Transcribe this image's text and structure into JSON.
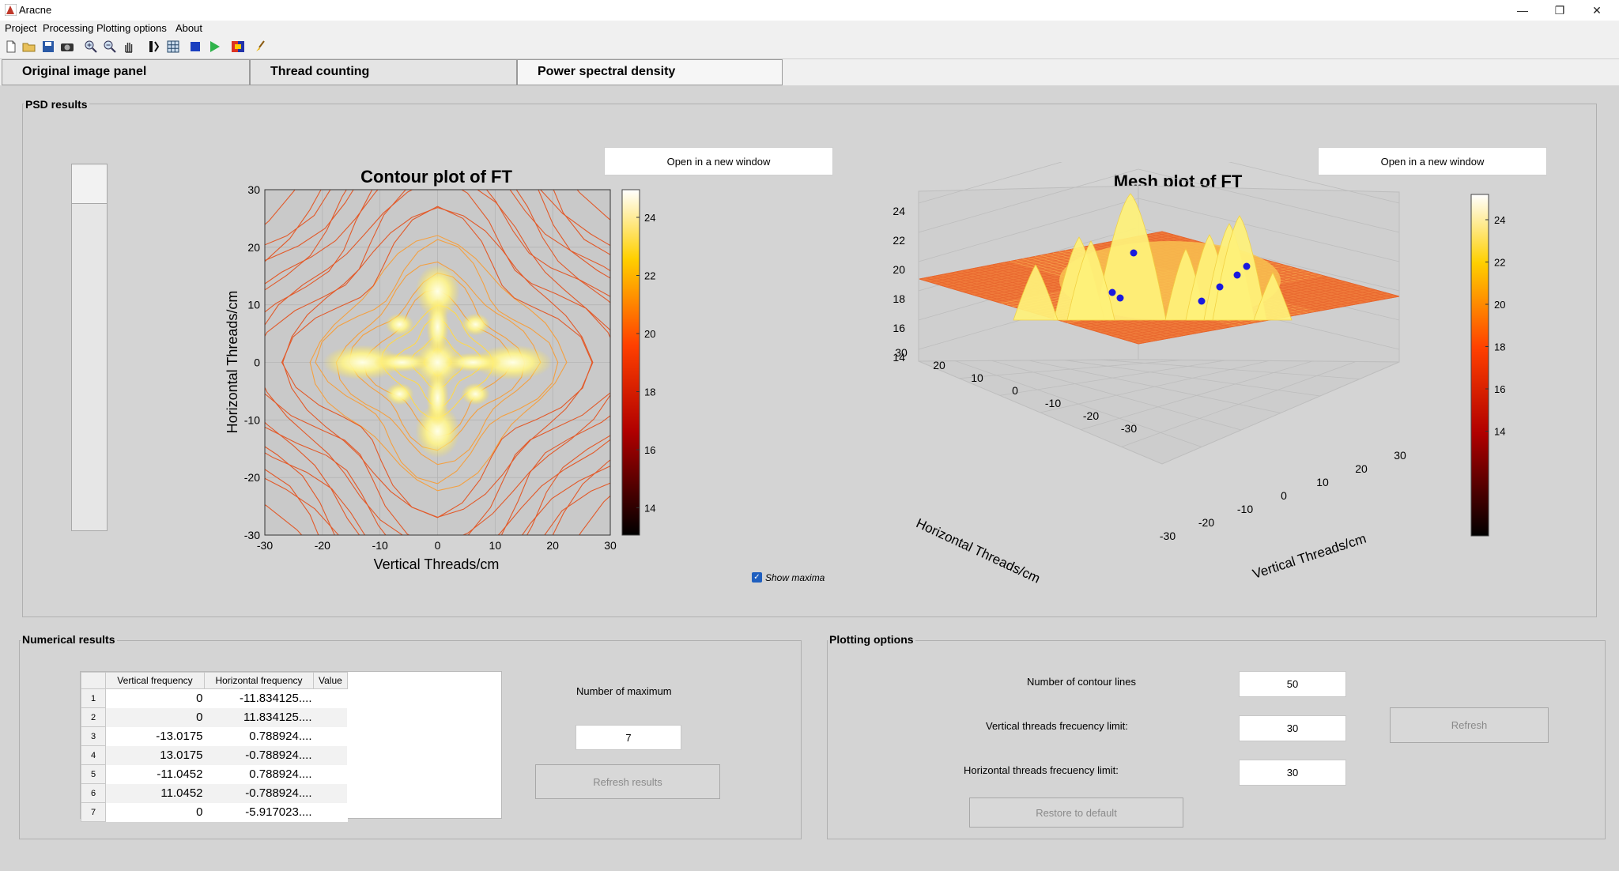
{
  "window": {
    "title": "Aracne",
    "controls": {
      "minimize": "—",
      "restore": "❐",
      "close": "✕"
    }
  },
  "menu": [
    "Project",
    "Processing",
    "Plotting options",
    "About"
  ],
  "toolbar_icons": [
    "new-file-icon",
    "open-folder-icon",
    "save-icon",
    "camera-icon",
    "zoom-in-icon",
    "zoom-out-icon",
    "pan-hand-icon",
    "data-cursor-icon",
    "grid-icon",
    "blue-square-icon",
    "play-icon",
    "colorbar-icon",
    "brush-icon"
  ],
  "tabs": [
    "Original image panel",
    "Thread counting",
    "Power spectral density"
  ],
  "psd_panel": {
    "title": "PSD results",
    "open_new_window_left": "Open in a new window",
    "open_new_window_right": "Open in a new window",
    "show_maxima_label": "Show maxima",
    "show_maxima_checked": true
  },
  "contour_plot": {
    "title": "Contour plot of FT",
    "xlabel": "Vertical Threads/cm",
    "ylabel": "Horizontal Threads/cm",
    "xticks": [
      "-30",
      "-20",
      "-10",
      "0",
      "10",
      "20",
      "30"
    ],
    "yticks": [
      "30",
      "20",
      "10",
      "0",
      "-10",
      "-20",
      "-30"
    ],
    "colorbar_ticks": [
      "24",
      "22",
      "20",
      "18",
      "16",
      "14"
    ]
  },
  "mesh_plot": {
    "title": "Mesh plot of FT",
    "zticks": [
      "24",
      "22",
      "20",
      "18",
      "16",
      "14"
    ],
    "left_axis_ticks": [
      "30",
      "20",
      "10",
      "0",
      "-10",
      "-20",
      "-30"
    ],
    "right_axis_ticks": [
      "-30",
      "-20",
      "-10",
      "0",
      "10",
      "20",
      "30"
    ],
    "xlabel": "Vertical Threads/cm",
    "ylabel": "Horizontal Threads/cm",
    "colorbar_ticks": [
      "24",
      "22",
      "20",
      "18",
      "16",
      "14"
    ]
  },
  "numerical": {
    "title": "Numerical results",
    "columns": [
      "Vertical frequency",
      "Horizontal frequency",
      "Value"
    ],
    "rows": [
      {
        "n": "1",
        "v": "0",
        "h": "-11.834125...."
      },
      {
        "n": "2",
        "v": "0",
        "h": "11.834125...."
      },
      {
        "n": "3",
        "v": "-13.0175",
        "h": "0.788924...."
      },
      {
        "n": "4",
        "v": "13.0175",
        "h": "-0.788924...."
      },
      {
        "n": "5",
        "v": "-11.0452",
        "h": "0.788924...."
      },
      {
        "n": "6",
        "v": "11.0452",
        "h": "-0.788924...."
      },
      {
        "n": "7",
        "v": "0",
        "h": "-5.917023...."
      }
    ],
    "num_max_label": "Number of maximum",
    "num_max_value": "7",
    "refresh_results": "Refresh results"
  },
  "plotting": {
    "title": "Plotting options",
    "contour_lines_label": "Number of contour lines",
    "contour_lines_value": "50",
    "vertical_limit_label": "Vertical threads frecuency limit:",
    "vertical_limit_value": "30",
    "horizontal_limit_label": "Horizontal threads frecuency limit:",
    "horizontal_limit_value": "30",
    "refresh": "Refresh",
    "restore": "Restore to default"
  }
}
